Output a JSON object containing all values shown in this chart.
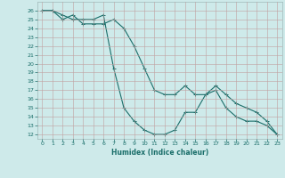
{
  "xlabel": "Humidex (Indice chaleur)",
  "ylabel": "",
  "bg_color": "#ceeaea",
  "grid_color": "#a8d0d0",
  "line_color": "#1a6e6a",
  "x_ticks": [
    0,
    1,
    2,
    3,
    4,
    5,
    6,
    7,
    8,
    9,
    10,
    11,
    12,
    13,
    14,
    15,
    16,
    17,
    18,
    19,
    20,
    21,
    22,
    23
  ],
  "y_ticks": [
    12,
    13,
    14,
    15,
    16,
    17,
    18,
    19,
    20,
    21,
    22,
    23,
    24,
    25,
    26
  ],
  "xlim": [
    -0.5,
    23.5
  ],
  "ylim": [
    11.5,
    27.0
  ],
  "series1_x": [
    0,
    1,
    2,
    3,
    4,
    5,
    6,
    7,
    8,
    9,
    10,
    11,
    12,
    13,
    14,
    15,
    16,
    17,
    18,
    19,
    20,
    21,
    22,
    23
  ],
  "series1_y": [
    26.0,
    26.0,
    25.5,
    25.0,
    25.0,
    25.0,
    25.5,
    19.5,
    15.0,
    13.5,
    12.5,
    12.0,
    12.0,
    12.5,
    14.5,
    14.5,
    16.5,
    17.0,
    15.0,
    14.0,
    13.5,
    13.5,
    13.0,
    12.0
  ],
  "series2_x": [
    0,
    1,
    2,
    3,
    4,
    5,
    6,
    7,
    8,
    9,
    10,
    11,
    12,
    13,
    14,
    15,
    16,
    17,
    18,
    19,
    20,
    21,
    22,
    23
  ],
  "series2_y": [
    26.0,
    26.0,
    25.0,
    25.5,
    24.5,
    24.5,
    24.5,
    25.0,
    24.0,
    22.0,
    19.5,
    17.0,
    16.5,
    16.5,
    17.5,
    16.5,
    16.5,
    17.5,
    16.5,
    15.5,
    15.0,
    14.5,
    13.5,
    12.0
  ]
}
